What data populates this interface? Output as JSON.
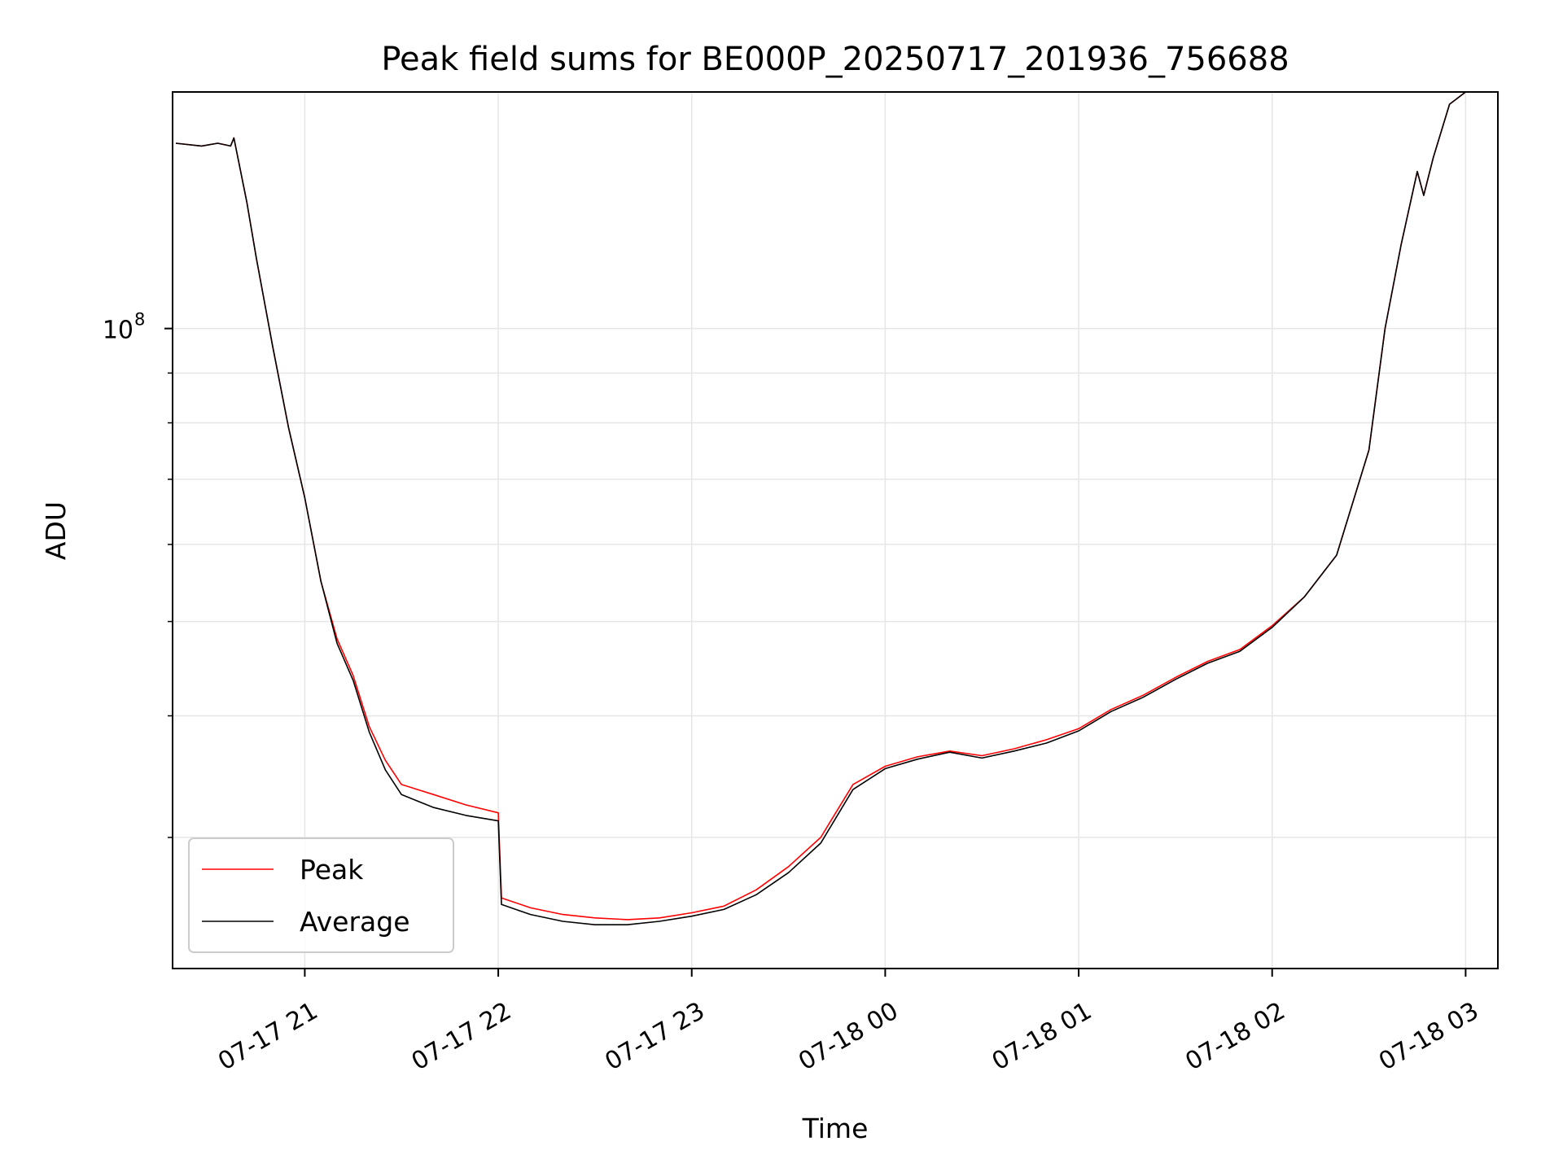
{
  "chart_data": {
    "type": "line",
    "title": "Peak field sums for BE000P_20250717_201936_756688",
    "xlabel": "Time",
    "ylabel": "ADU",
    "yscale": "log",
    "xlim": [
      "2025-07-17 20:19",
      "2025-07-18 03:10"
    ],
    "ylim": [
      22000000,
      175000000
    ],
    "grid": true,
    "legend": "lower left",
    "x_ticks": [
      "07-17 21",
      "07-17 22",
      "07-17 23",
      "07-18 00",
      "07-18 01",
      "07-18 02",
      "07-18 03"
    ],
    "y_ticks": [
      {
        "base": "10",
        "exponent": "8"
      }
    ],
    "series": [
      {
        "name": "Peak",
        "color": "#ff0000",
        "x": [
          "2025-07-17 20:20",
          "2025-07-17 20:28",
          "2025-07-17 20:33",
          "2025-07-17 20:37",
          "2025-07-17 20:38",
          "2025-07-17 20:42",
          "2025-07-17 20:45",
          "2025-07-17 20:50",
          "2025-07-17 20:55",
          "2025-07-17 21:00",
          "2025-07-17 21:05",
          "2025-07-17 21:10",
          "2025-07-17 21:15",
          "2025-07-17 21:20",
          "2025-07-17 21:25",
          "2025-07-17 21:30",
          "2025-07-17 21:40",
          "2025-07-17 21:50",
          "2025-07-17 22:00",
          "2025-07-17 22:01",
          "2025-07-17 22:10",
          "2025-07-17 22:20",
          "2025-07-17 22:30",
          "2025-07-17 22:40",
          "2025-07-17 22:50",
          "2025-07-17 23:00",
          "2025-07-17 23:10",
          "2025-07-17 23:20",
          "2025-07-17 23:30",
          "2025-07-17 23:40",
          "2025-07-17 23:50",
          "2025-07-18 00:00",
          "2025-07-18 00:10",
          "2025-07-18 00:20",
          "2025-07-18 00:30",
          "2025-07-18 00:40",
          "2025-07-18 00:50",
          "2025-07-18 01:00",
          "2025-07-18 01:10",
          "2025-07-18 01:20",
          "2025-07-18 01:30",
          "2025-07-18 01:40",
          "2025-07-18 01:50",
          "2025-07-18 02:00",
          "2025-07-18 02:10",
          "2025-07-18 02:20",
          "2025-07-18 02:30",
          "2025-07-18 02:35",
          "2025-07-18 02:40",
          "2025-07-18 02:45",
          "2025-07-18 02:47",
          "2025-07-18 02:50",
          "2025-07-18 02:55",
          "2025-07-18 03:00"
        ],
        "values": [
          155000000,
          154000000,
          155000000,
          154000000,
          157000000,
          135000000,
          118000000,
          96000000,
          79000000,
          67000000,
          55000000,
          48000000,
          44000000,
          39000000,
          36000000,
          34000000,
          33200000,
          32400000,
          31800000,
          26000000,
          25400000,
          25000000,
          24800000,
          24700000,
          24800000,
          25100000,
          25500000,
          26500000,
          28000000,
          30000000,
          34000000,
          35500000,
          36300000,
          36800000,
          36400000,
          37000000,
          37800000,
          38800000,
          40600000,
          42000000,
          43800000,
          45500000,
          46800000,
          49500000,
          53000000,
          58500000,
          75000000,
          100000000,
          122000000,
          145000000,
          137000000,
          150000000,
          170000000,
          175000000
        ]
      },
      {
        "name": "Average",
        "color": "#000000",
        "x": [
          "2025-07-17 20:20",
          "2025-07-17 20:28",
          "2025-07-17 20:33",
          "2025-07-17 20:37",
          "2025-07-17 20:38",
          "2025-07-17 20:42",
          "2025-07-17 20:45",
          "2025-07-17 20:50",
          "2025-07-17 20:55",
          "2025-07-17 21:00",
          "2025-07-17 21:05",
          "2025-07-17 21:10",
          "2025-07-17 21:15",
          "2025-07-17 21:20",
          "2025-07-17 21:25",
          "2025-07-17 21:30",
          "2025-07-17 21:40",
          "2025-07-17 21:50",
          "2025-07-17 22:00",
          "2025-07-17 22:01",
          "2025-07-17 22:10",
          "2025-07-17 22:20",
          "2025-07-17 22:30",
          "2025-07-17 22:40",
          "2025-07-17 22:50",
          "2025-07-17 23:00",
          "2025-07-17 23:10",
          "2025-07-17 23:20",
          "2025-07-17 23:30",
          "2025-07-17 23:40",
          "2025-07-17 23:50",
          "2025-07-18 00:00",
          "2025-07-18 00:10",
          "2025-07-18 00:20",
          "2025-07-18 00:30",
          "2025-07-18 00:40",
          "2025-07-18 00:50",
          "2025-07-18 01:00",
          "2025-07-18 01:10",
          "2025-07-18 01:20",
          "2025-07-18 01:30",
          "2025-07-18 01:40",
          "2025-07-18 01:50",
          "2025-07-18 02:00",
          "2025-07-18 02:10",
          "2025-07-18 02:20",
          "2025-07-18 02:30",
          "2025-07-18 02:35",
          "2025-07-18 02:40",
          "2025-07-18 02:45",
          "2025-07-18 02:47",
          "2025-07-18 02:50",
          "2025-07-18 02:55",
          "2025-07-18 03:00"
        ],
        "values": [
          155000000,
          154000000,
          155000000,
          154000000,
          157000000,
          135000000,
          118000000,
          96000000,
          79000000,
          67000000,
          55000000,
          47500000,
          43500000,
          38500000,
          35200000,
          33200000,
          32200000,
          31600000,
          31200000,
          25600000,
          25000000,
          24600000,
          24400000,
          24400000,
          24600000,
          24900000,
          25300000,
          26200000,
          27600000,
          29600000,
          33600000,
          35300000,
          36100000,
          36700000,
          36200000,
          36800000,
          37500000,
          38600000,
          40400000,
          41800000,
          43600000,
          45300000,
          46600000,
          49300000,
          53000000,
          58500000,
          75000000,
          100000000,
          122000000,
          145000000,
          137000000,
          150000000,
          170000000,
          175000000
        ]
      }
    ]
  }
}
